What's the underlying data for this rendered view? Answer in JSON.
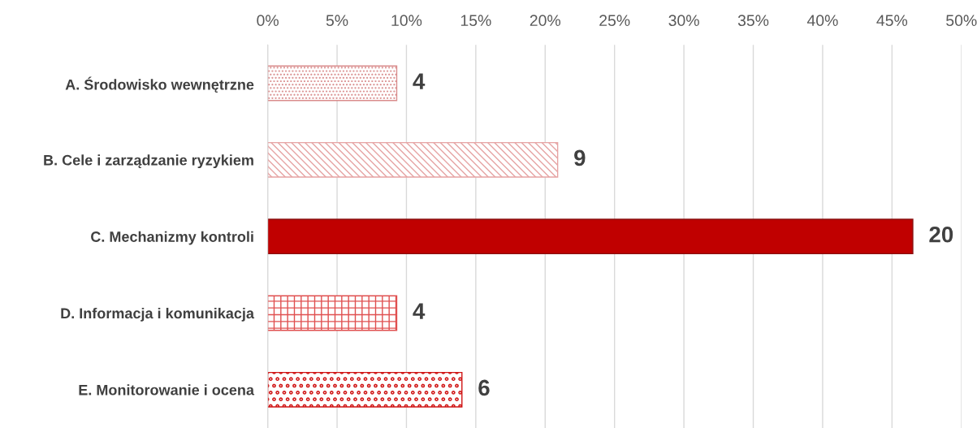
{
  "chart_data": {
    "type": "bar",
    "orientation": "horizontal",
    "categories": [
      "A. Środowisko wewnętrzne",
      "B. Cele i zarządzanie ryzykiem",
      "C. Mechanizmy kontroli",
      "D. Informacja i komunikacja",
      "E. Monitorowanie i ocena"
    ],
    "values": [
      9.3,
      20.9,
      46.5,
      9.3,
      14.0
    ],
    "colors": [
      "#d98c8c",
      "#e6a3a3",
      "#c00000",
      "#e05050",
      "#d01515"
    ],
    "annotations": [
      {
        "text": "4",
        "x": 9.3,
        "y": "A. Środowisko wewnętrzne"
      },
      {
        "text": "9",
        "x": 20.9,
        "y": "B. Cele i zarządzanie ryzykiem"
      },
      {
        "text": "20",
        "x": 46.5,
        "y": "C. Mechanizmy kontroli"
      },
      {
        "text": "4",
        "x": 9.3,
        "y": "D. Informacja i komunikacja"
      },
      {
        "text": "6",
        "x": 14.0,
        "y": "E. Monitorowanie i ocena"
      }
    ],
    "xlim": [
      0,
      50
    ],
    "xticks": [
      {
        "value": 0,
        "label": "0%"
      },
      {
        "value": 5,
        "label": "5%"
      },
      {
        "value": 10,
        "label": "10%"
      },
      {
        "value": 15,
        "label": "15%"
      },
      {
        "value": 20,
        "label": "20%"
      },
      {
        "value": 25,
        "label": "25%"
      },
      {
        "value": 30,
        "label": "30%"
      },
      {
        "value": 35,
        "label": "35%"
      },
      {
        "value": 40,
        "label": "40%"
      },
      {
        "value": 45,
        "label": "45%"
      },
      {
        "value": 50,
        "label": "50%"
      }
    ],
    "grid": "x"
  }
}
